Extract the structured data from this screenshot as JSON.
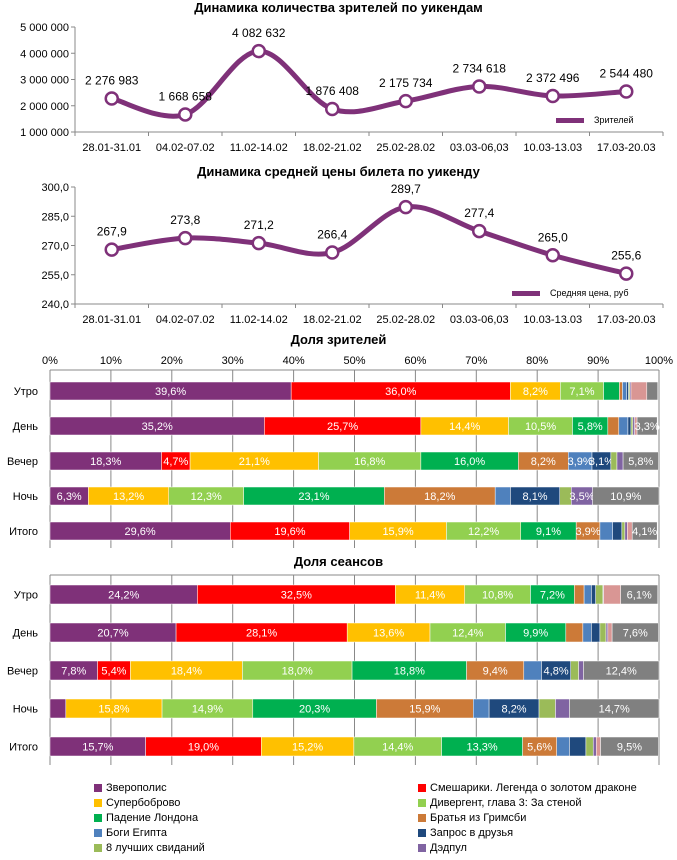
{
  "chart_data": [
    {
      "type": "line",
      "title": "Динамика количества зрителей по уикендам",
      "categories": [
        "28.01-31.01",
        "04.02-07.02",
        "11.02-14.02",
        "18.02-21.02",
        "25.02-28.02",
        "03.03-06,03",
        "10.03-13.03",
        "17.03-20.03"
      ],
      "series": [
        {
          "name": "Зрителей",
          "values": [
            2276983,
            1668658,
            4082632,
            1876408,
            2175734,
            2734618,
            2372496,
            2544480
          ],
          "labels": [
            "2 276 983",
            "1 668 658",
            "4 082 632",
            "1 876 408",
            "2 175 734",
            "2 734 618",
            "2 372 496",
            "2 544 480"
          ]
        }
      ],
      "ylim": [
        1000000,
        5000000
      ],
      "yticks": [
        "1 000 000",
        "2 000 000",
        "3 000 000",
        "4 000 000",
        "5 000 000"
      ],
      "legend": "bottom-right",
      "grid": false,
      "color": "#7F3179"
    },
    {
      "type": "line",
      "title": "Динамика средней цены билета по уикенду",
      "categories": [
        "28.01-31.01",
        "04.02-07.02",
        "11.02-14.02",
        "18.02-21.02",
        "25.02-28.02",
        "03.03-06,03",
        "10.03-13.03",
        "17.03-20.03"
      ],
      "series": [
        {
          "name": "Средняя цена, руб",
          "values": [
            267.9,
            273.8,
            271.2,
            266.4,
            289.7,
            277.4,
            265.0,
            255.6
          ],
          "labels": [
            "267,9",
            "273,8",
            "271,2",
            "266,4",
            "289,7",
            "277,4",
            "265,0",
            "255,6"
          ]
        }
      ],
      "ylim": [
        240,
        300
      ],
      "yticks": [
        "240,0",
        "255,0",
        "270,0",
        "285,0",
        "300,0"
      ],
      "legend": "bottom-right",
      "grid": false,
      "color": "#7F3179"
    },
    {
      "type": "bar",
      "orientation": "horizontal-stacked-100",
      "title": "Доля зрителей",
      "categories": [
        "Утро",
        "День",
        "Вечер",
        "Ночь",
        "Итого"
      ],
      "xticks": [
        "0%",
        "10%",
        "20%",
        "30%",
        "40%",
        "50%",
        "60%",
        "70%",
        "80%",
        "90%",
        "100%"
      ],
      "grid": true,
      "series_values": [
        [
          39.6,
          36.0,
          8.2,
          7.1,
          2.6,
          0.5,
          0.7,
          0.3,
          0.2,
          0.2,
          2.6,
          1.8
        ],
        [
          35.2,
          25.7,
          14.4,
          10.5,
          5.8,
          1.8,
          1.5,
          0.5,
          0.3,
          0.3,
          0.4,
          3.3
        ],
        [
          18.3,
          4.7,
          21.1,
          16.8,
          16.0,
          8.2,
          3.9,
          3.1,
          1.0,
          1.0,
          0,
          5.8
        ],
        [
          6.3,
          0,
          13.2,
          12.3,
          23.1,
          18.2,
          2.5,
          8.1,
          1.9,
          3.5,
          0,
          10.9
        ],
        [
          29.6,
          19.6,
          15.9,
          12.2,
          9.1,
          3.9,
          2.1,
          1.5,
          0.5,
          0.4,
          0.8,
          4.1
        ]
      ]
    },
    {
      "type": "bar",
      "orientation": "horizontal-stacked-100",
      "title": "Доля сеансов",
      "categories": [
        "Утро",
        "День",
        "Вечер",
        "Ночь",
        "Итого"
      ],
      "grid": true,
      "series_values": [
        [
          24.2,
          32.5,
          11.4,
          10.8,
          7.2,
          1.6,
          1.2,
          0.7,
          1.2,
          0.1,
          2.8,
          6.1
        ],
        [
          20.7,
          28.1,
          13.6,
          12.4,
          9.9,
          2.8,
          1.4,
          1.4,
          1.0,
          0.3,
          0.7,
          7.6
        ],
        [
          7.8,
          5.4,
          18.4,
          18.0,
          18.8,
          9.4,
          2.9,
          4.8,
          1.3,
          0.8,
          0,
          12.4
        ],
        [
          2.6,
          0,
          15.8,
          14.9,
          20.3,
          15.9,
          2.6,
          8.2,
          2.7,
          2.3,
          0,
          14.7
        ],
        [
          15.7,
          19.0,
          15.2,
          14.4,
          13.3,
          5.6,
          2.1,
          2.7,
          1.2,
          0.5,
          0.7,
          9.5
        ]
      ]
    }
  ],
  "bar_series": [
    {
      "name": "Зверополис",
      "color": "#7F3179"
    },
    {
      "name": "Смешарики. Легенда о золотом драконе",
      "color": "#FF0000"
    },
    {
      "name": "Супербоброво",
      "color": "#FFC000"
    },
    {
      "name": "Дивергент, глава 3: За стеной",
      "color": "#92D050"
    },
    {
      "name": "Падение Лондона",
      "color": "#00B050"
    },
    {
      "name": "Братья из Гримсби",
      "color": "#CC7A38"
    },
    {
      "name": "Боги Египта",
      "color": "#4F81BD"
    },
    {
      "name": "Запрос в друзья",
      "color": "#1F497D"
    },
    {
      "name": "8 лучших свиданий",
      "color": "#9BBB59"
    },
    {
      "name": "Дэдпул",
      "color": "#8064A2"
    },
    {
      "color": "#D99694"
    },
    {
      "color": "#808080"
    }
  ]
}
